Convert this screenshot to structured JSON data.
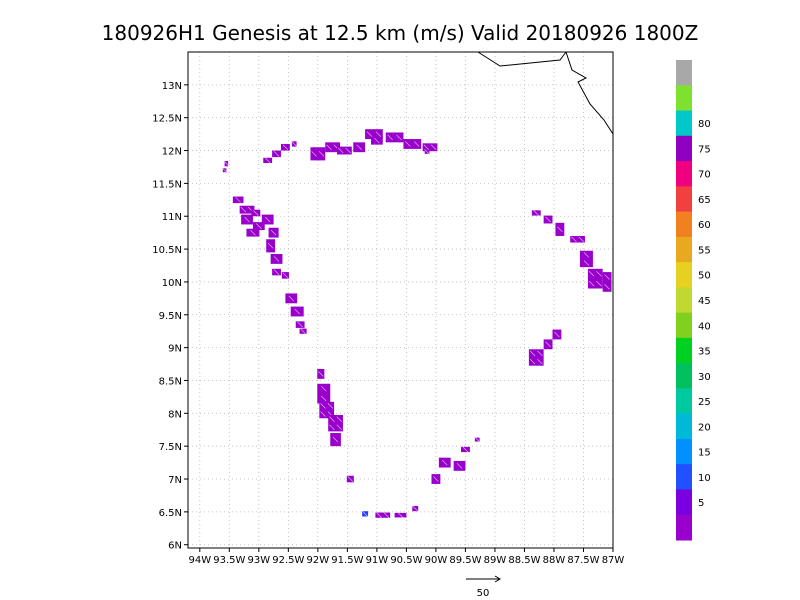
{
  "chart_data": {
    "type": "heatmap",
    "title": "180926H1 Genesis at 12.5 km (m/s) Valid 20180926 1800Z",
    "xlabel": "",
    "ylabel": "",
    "xlim": [
      -94.2,
      -87.0
    ],
    "ylim": [
      5.95,
      13.5
    ],
    "grid": true,
    "x_ticks": [
      -94,
      -93.5,
      -93,
      -92.5,
      -92,
      -91.5,
      -91,
      -90.5,
      -90,
      -89.5,
      -89,
      -88.5,
      -88,
      -87.5,
      -87
    ],
    "x_tick_labels": [
      "94W",
      "93.5W",
      "93W",
      "92.5W",
      "92W",
      "91.5W",
      "91W",
      "90.5W",
      "90W",
      "89.5W",
      "89W",
      "88.5W",
      "88W",
      "87.5W",
      "87W"
    ],
    "y_ticks": [
      6,
      6.5,
      7,
      7.5,
      8,
      8.5,
      9,
      9.5,
      10,
      10.5,
      11,
      11.5,
      12,
      12.5,
      13
    ],
    "y_tick_labels": [
      "6N",
      "6.5N",
      "7N",
      "7.5N",
      "8N",
      "8.5N",
      "9N",
      "9.5N",
      "10N",
      "10.5N",
      "11N",
      "11.5N",
      "12N",
      "12.5N",
      "13N"
    ],
    "colorbar": {
      "labels": [
        "5",
        "10",
        "15",
        "20",
        "25",
        "30",
        "35",
        "40",
        "45",
        "50",
        "55",
        "60",
        "65",
        "70",
        "75",
        "80"
      ],
      "colors": [
        "#9a00cc",
        "#7a00e0",
        "#2050ff",
        "#0090ff",
        "#00b8d8",
        "#00c8a0",
        "#00c060",
        "#00d020",
        "#80d020",
        "#c0d830",
        "#e8d020",
        "#e8a820",
        "#f08020",
        "#f04040",
        "#f00080",
        "#9000c0",
        "#00c8c8",
        "#80e030",
        "#a8a8a8"
      ]
    },
    "coastline_color": "#000000",
    "series": [
      {
        "values": [
          [
            -93.35,
            11.25,
            0.18,
            0.1
          ],
          [
            -93.2,
            11.1,
            0.25,
            0.12
          ],
          [
            -93.2,
            10.95,
            0.2,
            0.15
          ],
          [
            -93.05,
            11.05,
            0.15,
            0.1
          ],
          [
            -93.0,
            10.85,
            0.2,
            0.12
          ],
          [
            -93.1,
            10.75,
            0.22,
            0.12
          ],
          [
            -92.85,
            10.95,
            0.2,
            0.15
          ],
          [
            -92.75,
            10.75,
            0.17,
            0.15
          ],
          [
            -92.8,
            10.55,
            0.15,
            0.2
          ],
          [
            -92.7,
            10.35,
            0.2,
            0.15
          ],
          [
            -92.7,
            10.15,
            0.15,
            0.1
          ],
          [
            -92.55,
            10.1,
            0.12,
            0.1
          ],
          [
            -92.45,
            9.75,
            0.2,
            0.15
          ],
          [
            -92.35,
            9.55,
            0.22,
            0.15
          ],
          [
            -92.3,
            9.35,
            0.15,
            0.1
          ],
          [
            -92.25,
            9.25,
            0.12,
            0.08
          ],
          [
            -93.55,
            11.8,
            0.06,
            0.08
          ],
          [
            -93.58,
            11.7,
            0.06,
            0.06
          ],
          [
            -92.85,
            11.85,
            0.15,
            0.08
          ],
          [
            -92.7,
            11.95,
            0.15,
            0.1
          ],
          [
            -92.55,
            12.05,
            0.15,
            0.1
          ],
          [
            -92.4,
            12.1,
            0.08,
            0.08
          ],
          [
            -92.0,
            11.95,
            0.25,
            0.2
          ],
          [
            -91.75,
            12.05,
            0.25,
            0.15
          ],
          [
            -91.55,
            12.0,
            0.25,
            0.12
          ],
          [
            -91.3,
            12.05,
            0.2,
            0.15
          ],
          [
            -91.05,
            12.25,
            0.3,
            0.15
          ],
          [
            -91.0,
            12.15,
            0.2,
            0.12
          ],
          [
            -90.7,
            12.2,
            0.3,
            0.15
          ],
          [
            -90.4,
            12.1,
            0.3,
            0.15
          ],
          [
            -90.1,
            12.05,
            0.25,
            0.12
          ],
          [
            -90.15,
            11.98,
            0.08,
            0.06
          ],
          [
            -91.9,
            8.3,
            0.22,
            0.3
          ],
          [
            -91.85,
            8.05,
            0.25,
            0.25
          ],
          [
            -91.7,
            7.85,
            0.25,
            0.25
          ],
          [
            -91.7,
            7.6,
            0.18,
            0.2
          ],
          [
            -91.95,
            8.6,
            0.12,
            0.15
          ],
          [
            -91.45,
            7.0,
            0.12,
            0.1
          ],
          [
            -90.9,
            6.45,
            0.25,
            0.08
          ],
          [
            -90.6,
            6.45,
            0.2,
            0.07
          ],
          [
            -90.35,
            6.55,
            0.1,
            0.08
          ],
          [
            -90.0,
            7.0,
            0.15,
            0.15
          ],
          [
            -89.85,
            7.25,
            0.2,
            0.15
          ],
          [
            -89.6,
            7.2,
            0.2,
            0.15
          ],
          [
            -89.5,
            7.45,
            0.15,
            0.08
          ],
          [
            -89.3,
            7.6,
            0.08,
            0.06
          ],
          [
            -88.3,
            11.05,
            0.15,
            0.08
          ],
          [
            -88.1,
            10.95,
            0.15,
            0.12
          ],
          [
            -87.9,
            10.8,
            0.15,
            0.2
          ],
          [
            -87.6,
            10.65,
            0.25,
            0.1
          ],
          [
            -87.45,
            10.35,
            0.22,
            0.25
          ],
          [
            -87.3,
            10.05,
            0.25,
            0.3
          ],
          [
            -87.1,
            10.0,
            0.15,
            0.3
          ],
          [
            -88.3,
            8.85,
            0.25,
            0.25
          ],
          [
            -88.1,
            9.05,
            0.15,
            0.15
          ],
          [
            -87.95,
            9.2,
            0.15,
            0.15
          ]
        ],
        "color": "#9a00cc"
      },
      {
        "values": [
          [
            -91.2,
            6.47,
            0.1,
            0.08
          ]
        ],
        "color": "#2040ff"
      }
    ],
    "scale_arrow_label": "50"
  }
}
